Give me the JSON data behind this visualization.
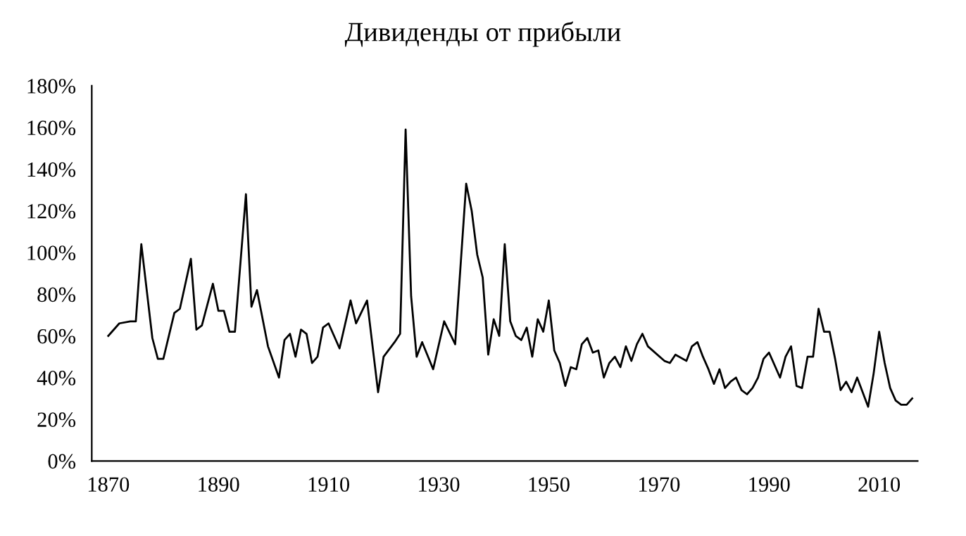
{
  "chart_data": {
    "type": "line",
    "title": "Дивиденды от прибыли",
    "x": [
      1870,
      1872,
      1874,
      1875,
      1876,
      1878,
      1879,
      1880,
      1882,
      1883,
      1885,
      1886,
      1887,
      1889,
      1890,
      1891,
      1892,
      1893,
      1895,
      1896,
      1897,
      1899,
      1901,
      1902,
      1903,
      1904,
      1905,
      1906,
      1907,
      1908,
      1909,
      1910,
      1912,
      1914,
      1915,
      1917,
      1919,
      1920,
      1922,
      1923,
      1924,
      1925,
      1926,
      1927,
      1929,
      1931,
      1933,
      1935,
      1936,
      1937,
      1938,
      1939,
      1940,
      1941,
      1942,
      1943,
      1944,
      1945,
      1946,
      1947,
      1948,
      1949,
      1950,
      1951,
      1952,
      1953,
      1954,
      1955,
      1956,
      1957,
      1958,
      1959,
      1960,
      1961,
      1962,
      1963,
      1964,
      1965,
      1966,
      1967,
      1968,
      1971,
      1972,
      1973,
      1975,
      1976,
      1977,
      1978,
      1979,
      1980,
      1981,
      1982,
      1983,
      1984,
      1985,
      1986,
      1987,
      1988,
      1989,
      1990,
      1992,
      1993,
      1994,
      1995,
      1996,
      1997,
      1998,
      1999,
      2000,
      2001,
      2002,
      2003,
      2004,
      2005,
      2006,
      2008,
      2009,
      2010,
      2011,
      2012,
      2013,
      2014,
      2015,
      2016
    ],
    "series": [
      {
        "color": "#000000",
        "values": [
          60,
          66,
          67,
          67,
          104,
          59,
          49,
          49,
          71,
          73,
          97,
          63,
          65,
          85,
          72,
          72,
          62,
          62,
          128,
          74,
          82,
          55,
          40,
          58,
          61,
          50,
          63,
          61,
          47,
          50,
          64,
          66,
          54,
          77,
          66,
          77,
          33,
          50,
          57,
          61,
          159,
          79,
          50,
          57,
          44,
          67,
          56,
          133,
          120,
          99,
          88,
          51,
          68,
          60,
          104,
          67,
          60,
          58,
          64,
          50,
          68,
          62,
          77,
          53,
          47,
          36,
          45,
          44,
          56,
          59,
          52,
          53,
          40,
          47,
          50,
          45,
          55,
          48,
          56,
          61,
          55,
          48,
          47,
          51,
          48,
          55,
          57,
          50,
          44,
          37,
          44,
          35,
          38,
          40,
          34,
          32,
          35,
          40,
          49,
          52,
          40,
          50,
          55,
          36,
          35,
          50,
          50,
          73,
          62,
          62,
          49,
          34,
          38,
          33,
          40,
          26,
          42,
          62,
          47,
          35,
          29,
          27,
          27,
          30
        ]
      }
    ],
    "xlim": [
      1867,
      2017
    ],
    "xticks": [
      1870,
      1890,
      1910,
      1930,
      1950,
      1970,
      1990,
      2010
    ],
    "ylim": [
      0,
      180
    ],
    "yticks": [
      {
        "value": 0,
        "label": "0%"
      },
      {
        "value": 20,
        "label": "20%"
      },
      {
        "value": 40,
        "label": "40%"
      },
      {
        "value": 60,
        "label": "60%"
      },
      {
        "value": 80,
        "label": "80%"
      },
      {
        "value": 100,
        "label": "100%"
      },
      {
        "value": 120,
        "label": "120%"
      },
      {
        "value": 140,
        "label": "140%"
      },
      {
        "value": 160,
        "label": "160%"
      },
      {
        "value": 180,
        "label": "180%"
      }
    ],
    "grid": false,
    "legend": false
  }
}
